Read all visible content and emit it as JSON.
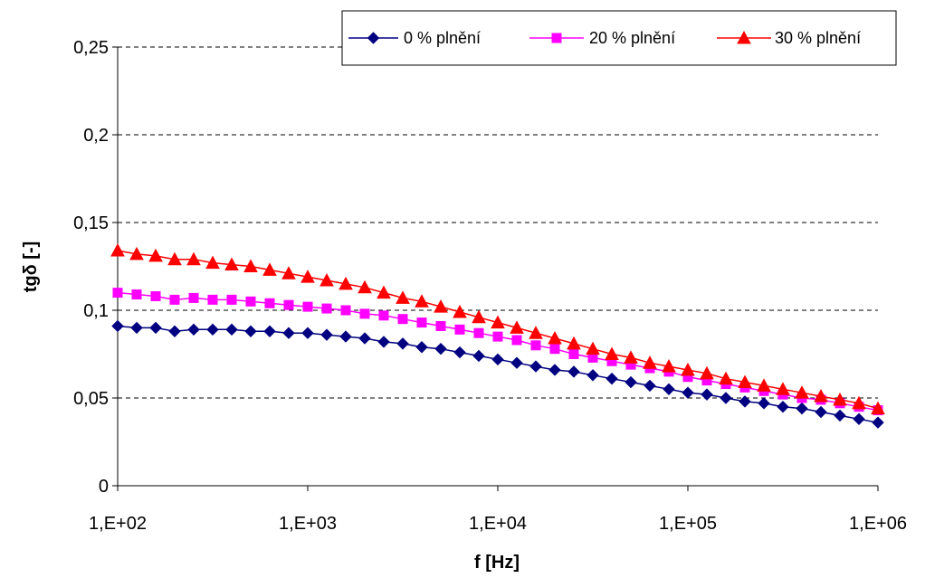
{
  "chart_data": {
    "type": "line",
    "xlabel": "f [Hz]",
    "ylabel": "tgδ  [-]",
    "x_scale": "log",
    "xlim": [
      100,
      1000000
    ],
    "ylim": [
      0,
      0.25
    ],
    "x_ticks": [
      100,
      1000,
      10000,
      100000,
      1000000
    ],
    "x_tick_labels": [
      "1,E+02",
      "1,E+03",
      "1,E+04",
      "1,E+05",
      "1,E+06"
    ],
    "y_ticks": [
      0,
      0.05,
      0.1,
      0.15,
      0.2,
      0.25
    ],
    "y_tick_labels": [
      "0",
      "0,05",
      "0,1",
      "0,15",
      "0,2",
      "0,25"
    ],
    "grid": "horizontal dashed",
    "legend_position": "top-right",
    "x": [
      100,
      125.9,
      158.5,
      199.5,
      251.2,
      316.2,
      398.1,
      501.2,
      631,
      794.3,
      1000,
      1258.9,
      1584.9,
      1995.3,
      2511.9,
      3162.3,
      3981.1,
      5011.9,
      6309.6,
      7943.3,
      10000,
      12589,
      15849,
      19953,
      25119,
      31623,
      39811,
      50119,
      63096,
      79433,
      100000,
      125893,
      158489,
      199526,
      251189,
      316228,
      398107,
      501187,
      630957,
      794328,
      1000000
    ],
    "series": [
      {
        "name": "0 % plnění",
        "color": "#000080",
        "marker": "diamond",
        "values": [
          0.091,
          0.09,
          0.09,
          0.088,
          0.089,
          0.089,
          0.089,
          0.088,
          0.088,
          0.087,
          0.087,
          0.086,
          0.085,
          0.084,
          0.082,
          0.081,
          0.079,
          0.078,
          0.076,
          0.074,
          0.072,
          0.07,
          0.068,
          0.066,
          0.065,
          0.063,
          0.061,
          0.059,
          0.057,
          0.055,
          0.053,
          0.052,
          0.05,
          0.048,
          0.047,
          0.045,
          0.044,
          0.042,
          0.04,
          0.038,
          0.036
        ]
      },
      {
        "name": "20 % plnění",
        "color": "#ff00ff",
        "marker": "square",
        "values": [
          0.11,
          0.109,
          0.108,
          0.106,
          0.107,
          0.106,
          0.106,
          0.105,
          0.104,
          0.103,
          0.102,
          0.101,
          0.1,
          0.098,
          0.097,
          0.095,
          0.093,
          0.091,
          0.089,
          0.087,
          0.085,
          0.083,
          0.08,
          0.078,
          0.075,
          0.073,
          0.071,
          0.069,
          0.067,
          0.065,
          0.062,
          0.06,
          0.058,
          0.056,
          0.054,
          0.052,
          0.05,
          0.049,
          0.047,
          0.045,
          0.043
        ]
      },
      {
        "name": "30 % plnění",
        "color": "#ff0000",
        "marker": "triangle",
        "values": [
          0.134,
          0.132,
          0.131,
          0.129,
          0.129,
          0.127,
          0.126,
          0.125,
          0.123,
          0.121,
          0.119,
          0.117,
          0.115,
          0.113,
          0.11,
          0.107,
          0.105,
          0.102,
          0.099,
          0.096,
          0.093,
          0.09,
          0.087,
          0.084,
          0.081,
          0.078,
          0.075,
          0.073,
          0.07,
          0.068,
          0.066,
          0.064,
          0.061,
          0.059,
          0.057,
          0.055,
          0.053,
          0.051,
          0.049,
          0.047,
          0.044
        ]
      }
    ]
  }
}
